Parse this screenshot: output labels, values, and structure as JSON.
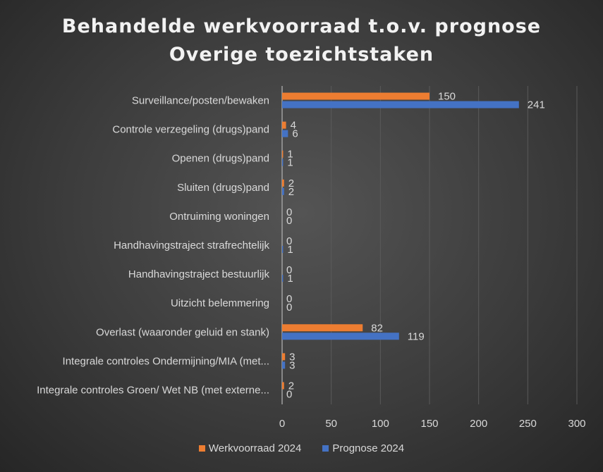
{
  "chart_data": {
    "type": "bar",
    "orientation": "horizontal",
    "title": "Behandelde werkvoorraad t.o.v. prognose",
    "subtitle": "Overige toezichtstaken",
    "categories": [
      "Surveillance/posten/bewaken",
      "Controle verzegeling (drugs)pand",
      "Openen (drugs)pand",
      "Sluiten (drugs)pand",
      "Ontruiming woningen",
      "Handhavingstraject strafrechtelijk",
      "Handhavingstraject bestuurlijk",
      "Uitzicht belemmering",
      "Overlast (waaronder geluid en stank)",
      "Integrale controles Ondermijning/MIA (met...",
      "Integrale controles Groen/ Wet NB (met externe..."
    ],
    "series": [
      {
        "name": "Werkvoorraad 2024",
        "color": "#ed7d31",
        "values": [
          150,
          4,
          1,
          2,
          0,
          0,
          0,
          0,
          82,
          3,
          2
        ]
      },
      {
        "name": "Prognose 2024",
        "color": "#4472c4",
        "values": [
          241,
          6,
          1,
          2,
          0,
          1,
          1,
          0,
          119,
          3,
          0
        ]
      }
    ],
    "xlim": [
      0,
      300
    ],
    "xticks": [
      "0",
      "50",
      "100",
      "150",
      "200",
      "250",
      "300"
    ],
    "grid": true,
    "legend": "bottom"
  }
}
